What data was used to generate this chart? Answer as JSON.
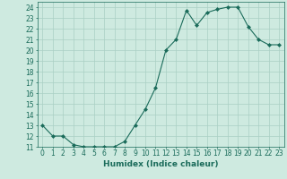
{
  "x": [
    0,
    1,
    2,
    3,
    4,
    5,
    6,
    7,
    8,
    9,
    10,
    11,
    12,
    13,
    14,
    15,
    16,
    17,
    18,
    19,
    20,
    21,
    22,
    23
  ],
  "y": [
    13,
    12,
    12,
    11.2,
    11,
    11,
    11,
    11,
    11.5,
    13,
    14.5,
    16.5,
    20,
    21,
    23.7,
    22.3,
    23.5,
    23.8,
    24,
    24,
    22.2,
    21,
    20.5,
    20.5
  ],
  "line_color": "#1a6b5a",
  "marker_color": "#1a6b5a",
  "bg_color": "#ceeae0",
  "grid_color": "#aacfc4",
  "xlabel": "Humidex (Indice chaleur)",
  "ylim": [
    11,
    24.5
  ],
  "xlim": [
    -0.5,
    23.5
  ],
  "yticks": [
    11,
    12,
    13,
    14,
    15,
    16,
    17,
    18,
    19,
    20,
    21,
    22,
    23,
    24
  ],
  "xticks": [
    0,
    1,
    2,
    3,
    4,
    5,
    6,
    7,
    8,
    9,
    10,
    11,
    12,
    13,
    14,
    15,
    16,
    17,
    18,
    19,
    20,
    21,
    22,
    23
  ],
  "label_fontsize": 6.5,
  "tick_fontsize": 5.5
}
